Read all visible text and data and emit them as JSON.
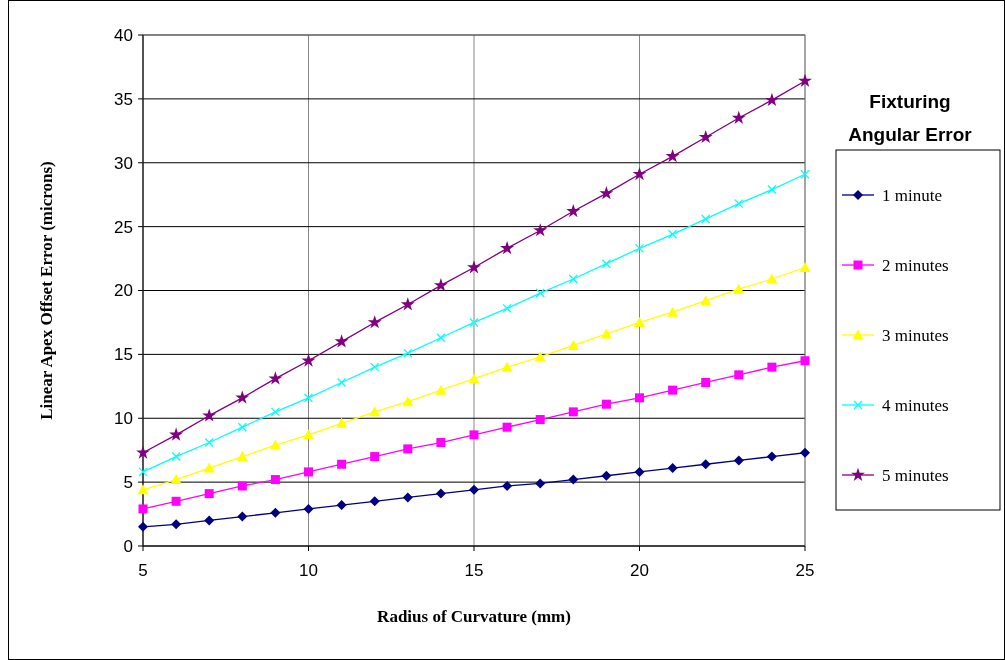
{
  "chart_data": {
    "type": "line",
    "xlabel": "Radius of Curvature (mm)",
    "ylabel": "Linear Apex Offset Error (microns)",
    "legend_title": "Fixturing Angular Error",
    "x": [
      5,
      6,
      7,
      8,
      9,
      10,
      11,
      12,
      13,
      14,
      15,
      16,
      17,
      18,
      19,
      20,
      21,
      22,
      23,
      24,
      25
    ],
    "xlim": [
      5,
      25
    ],
    "xticks": [
      5,
      10,
      15,
      20,
      25
    ],
    "ylim": [
      0,
      40
    ],
    "yticks": [
      0,
      5,
      10,
      15,
      20,
      25,
      30,
      35,
      40
    ],
    "grid": true,
    "legend": "right",
    "series": [
      {
        "name": "1 minute",
        "color": "#000080",
        "marker": "diamond",
        "values": [
          1.5,
          1.7,
          2.0,
          2.3,
          2.6,
          2.9,
          3.2,
          3.5,
          3.8,
          4.1,
          4.4,
          4.7,
          4.9,
          5.2,
          5.5,
          5.8,
          6.1,
          6.4,
          6.7,
          7.0,
          7.3
        ]
      },
      {
        "name": "2 minutes",
        "color": "#ff00ff",
        "marker": "square",
        "values": [
          2.9,
          3.5,
          4.1,
          4.7,
          5.2,
          5.8,
          6.4,
          7.0,
          7.6,
          8.1,
          8.7,
          9.3,
          9.9,
          10.5,
          11.1,
          11.6,
          12.2,
          12.8,
          13.4,
          14.0,
          14.5
        ]
      },
      {
        "name": "3 minutes",
        "color": "#ffff00",
        "marker": "triangle",
        "values": [
          4.4,
          5.2,
          6.1,
          7.0,
          7.9,
          8.7,
          9.6,
          10.5,
          11.3,
          12.2,
          13.1,
          14.0,
          14.8,
          15.7,
          16.6,
          17.5,
          18.3,
          19.2,
          20.1,
          20.9,
          21.8
        ]
      },
      {
        "name": "4 minutes",
        "color": "#00ffff",
        "marker": "cross",
        "values": [
          5.8,
          7.0,
          8.1,
          9.3,
          10.5,
          11.6,
          12.8,
          14.0,
          15.1,
          16.3,
          17.5,
          18.6,
          19.8,
          20.9,
          22.1,
          23.3,
          24.4,
          25.6,
          26.8,
          27.9,
          29.1
        ]
      },
      {
        "name": "5 minutes",
        "color": "#800080",
        "marker": "star",
        "values": [
          7.3,
          8.7,
          10.2,
          11.6,
          13.1,
          14.5,
          16.0,
          17.5,
          18.9,
          20.4,
          21.8,
          23.3,
          24.7,
          26.2,
          27.6,
          29.1,
          30.5,
          32.0,
          33.5,
          34.9,
          36.4
        ]
      }
    ]
  }
}
